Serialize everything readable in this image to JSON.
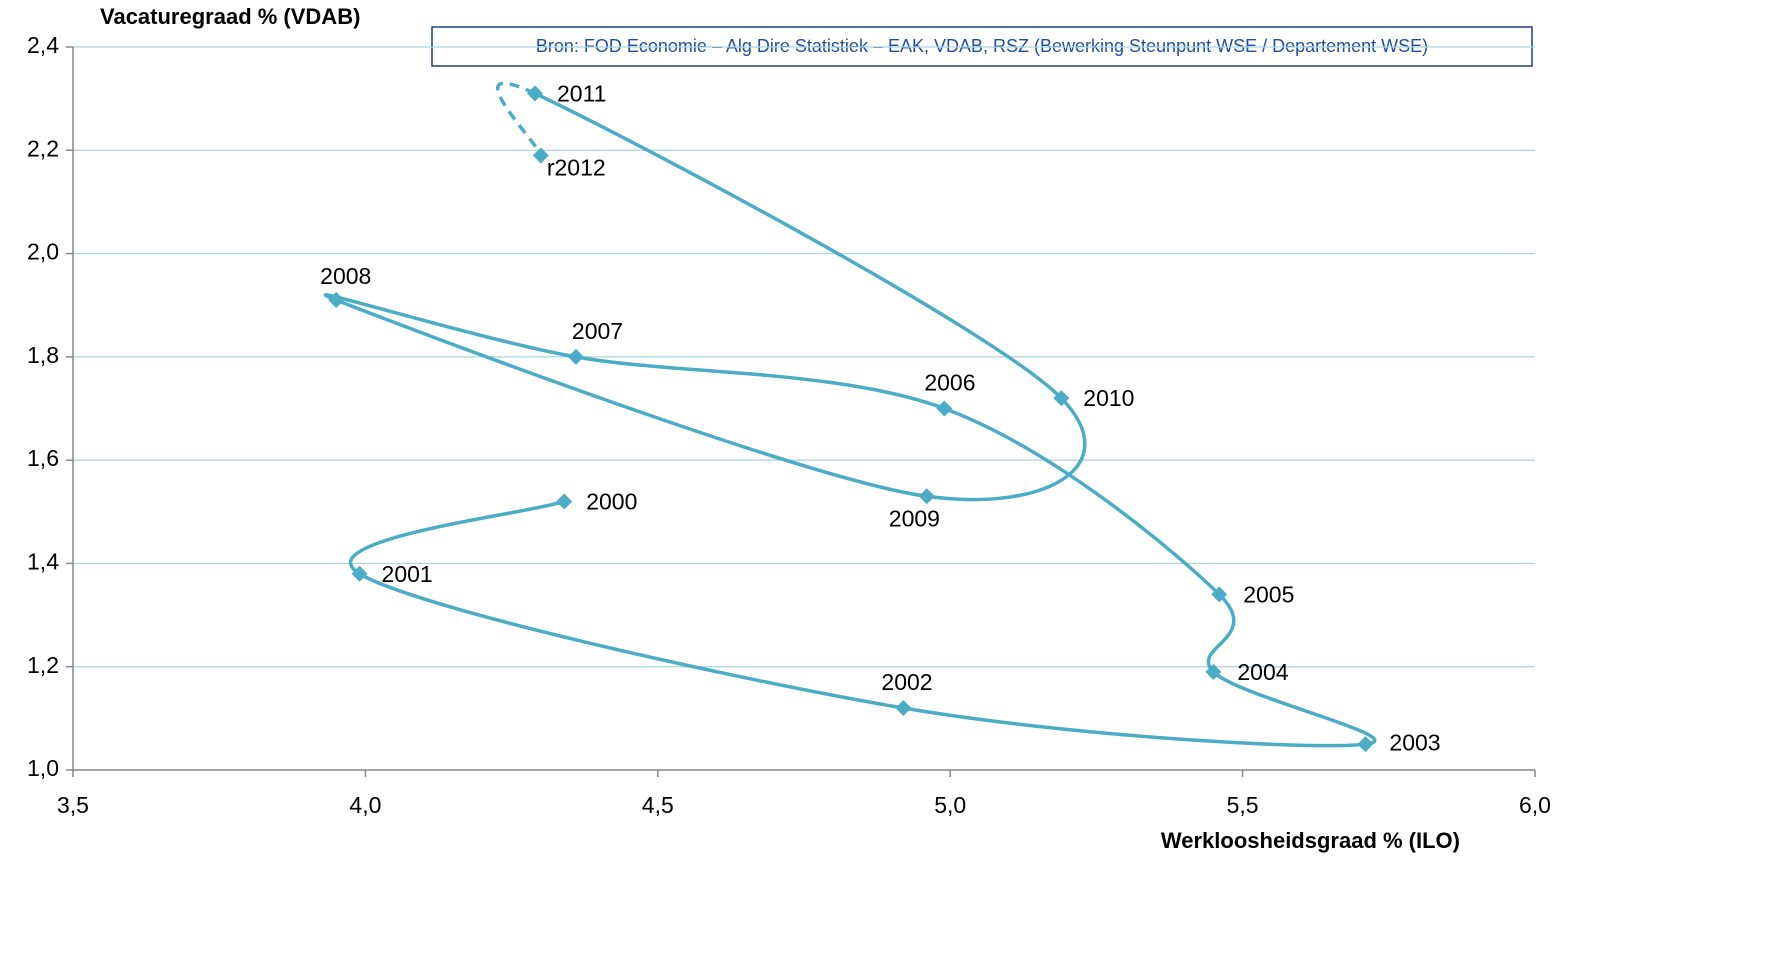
{
  "chart_data": {
    "type": "line",
    "y_axis_label": "Vacaturegraad % (VDAB)",
    "x_axis_label": "Werkloosheidsgraad % (ILO)",
    "source": "Bron: FOD Economie – Alg Dire Statistiek – EAK, VDAB, RSZ  (Bewerking Steunpunt WSE / Departement WSE)",
    "xlim": [
      3.5,
      6.0
    ],
    "xticks": [
      {
        "value": 3.5,
        "label": "3,5"
      },
      {
        "value": 4.0,
        "label": "4,0"
      },
      {
        "value": 4.5,
        "label": "4,5"
      },
      {
        "value": 5.0,
        "label": "5,0"
      },
      {
        "value": 5.5,
        "label": "5,5"
      },
      {
        "value": 6.0,
        "label": "6,0"
      }
    ],
    "ylim": [
      1.0,
      2.4
    ],
    "yticks": [
      {
        "value": 1.0,
        "label": "1,0"
      },
      {
        "value": 1.2,
        "label": "1,2"
      },
      {
        "value": 1.4,
        "label": "1,4"
      },
      {
        "value": 1.6,
        "label": "1,6"
      },
      {
        "value": 1.8,
        "label": "1,8"
      },
      {
        "value": 2.0,
        "label": "2,0"
      },
      {
        "value": 2.2,
        "label": "2,2"
      },
      {
        "value": 2.4,
        "label": "2,4"
      }
    ],
    "grid": true,
    "smooth": true,
    "dashed_segments": [
      11
    ],
    "series": [
      {
        "color": "#4bacc6",
        "point_labels": [
          "2000",
          "2001",
          "2002",
          "2003",
          "2004",
          "2005",
          "2006",
          "2007",
          "2008",
          "2009",
          "2010",
          "2011",
          "r2012"
        ],
        "x": [
          4.34,
          3.99,
          4.92,
          5.71,
          5.45,
          5.46,
          4.99,
          4.36,
          3.95,
          4.96,
          5.19,
          4.29,
          4.3
        ],
        "values": [
          1.52,
          1.38,
          1.12,
          1.05,
          1.19,
          1.34,
          1.7,
          1.8,
          1.91,
          1.53,
          1.72,
          2.31,
          2.19
        ]
      }
    ]
  }
}
